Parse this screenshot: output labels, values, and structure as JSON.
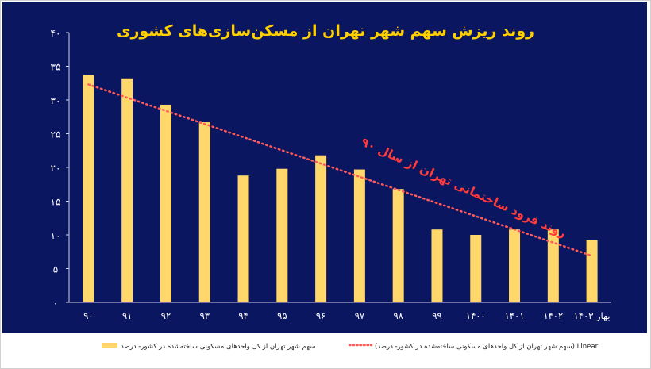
{
  "chart_data": {
    "type": "bar",
    "title": "روند ریزش سهم شهر تهران از مسکن‌سازی‌های کشوری",
    "categories": [
      "۹۰",
      "۹۱",
      "۹۲",
      "۹۳",
      "۹۴",
      "۹۵",
      "۹۶",
      "۹۷",
      "۹۸",
      "۹۹",
      "۱۴۰۰",
      "۱۴۰۱",
      "۱۴۰۲",
      "بهار ۱۴۰۳"
    ],
    "series": [
      {
        "name": "سهم شهر تهران از کل واحدهای مسکونی ساخته‌شده در کشور- درصد",
        "values": [
          33.7,
          33.2,
          29.3,
          26.7,
          18.8,
          19.8,
          21.8,
          19.7,
          16.8,
          10.8,
          10.0,
          10.8,
          10.8,
          9.2
        ]
      }
    ],
    "trendline": {
      "name": "Linear (سهم شهر تهران از کل واحدهای مسکونی ساخته‌شده در کشور- درصد)",
      "start": 32.3,
      "end": 6.9
    },
    "annotation": "روند فرود ساختمانی تهران از سال ۹۰",
    "ylim": [
      0,
      40
    ],
    "yticks": [
      "۰",
      "۵",
      "۱۰",
      "۱۵",
      "۲۰",
      "۲۵",
      "۳۰",
      "۳۵",
      "۴۰"
    ],
    "ytick_values": [
      0,
      5,
      10,
      15,
      20,
      25,
      30,
      35,
      40
    ],
    "grid": false,
    "legend_position": "bottom",
    "colors": {
      "background": "#0b1660",
      "bar": "#ffd76a",
      "trend": "#ff5a5a",
      "title": "#ffd000",
      "annotation": "#ff3b3b",
      "tick_text": "#ffffff"
    }
  }
}
